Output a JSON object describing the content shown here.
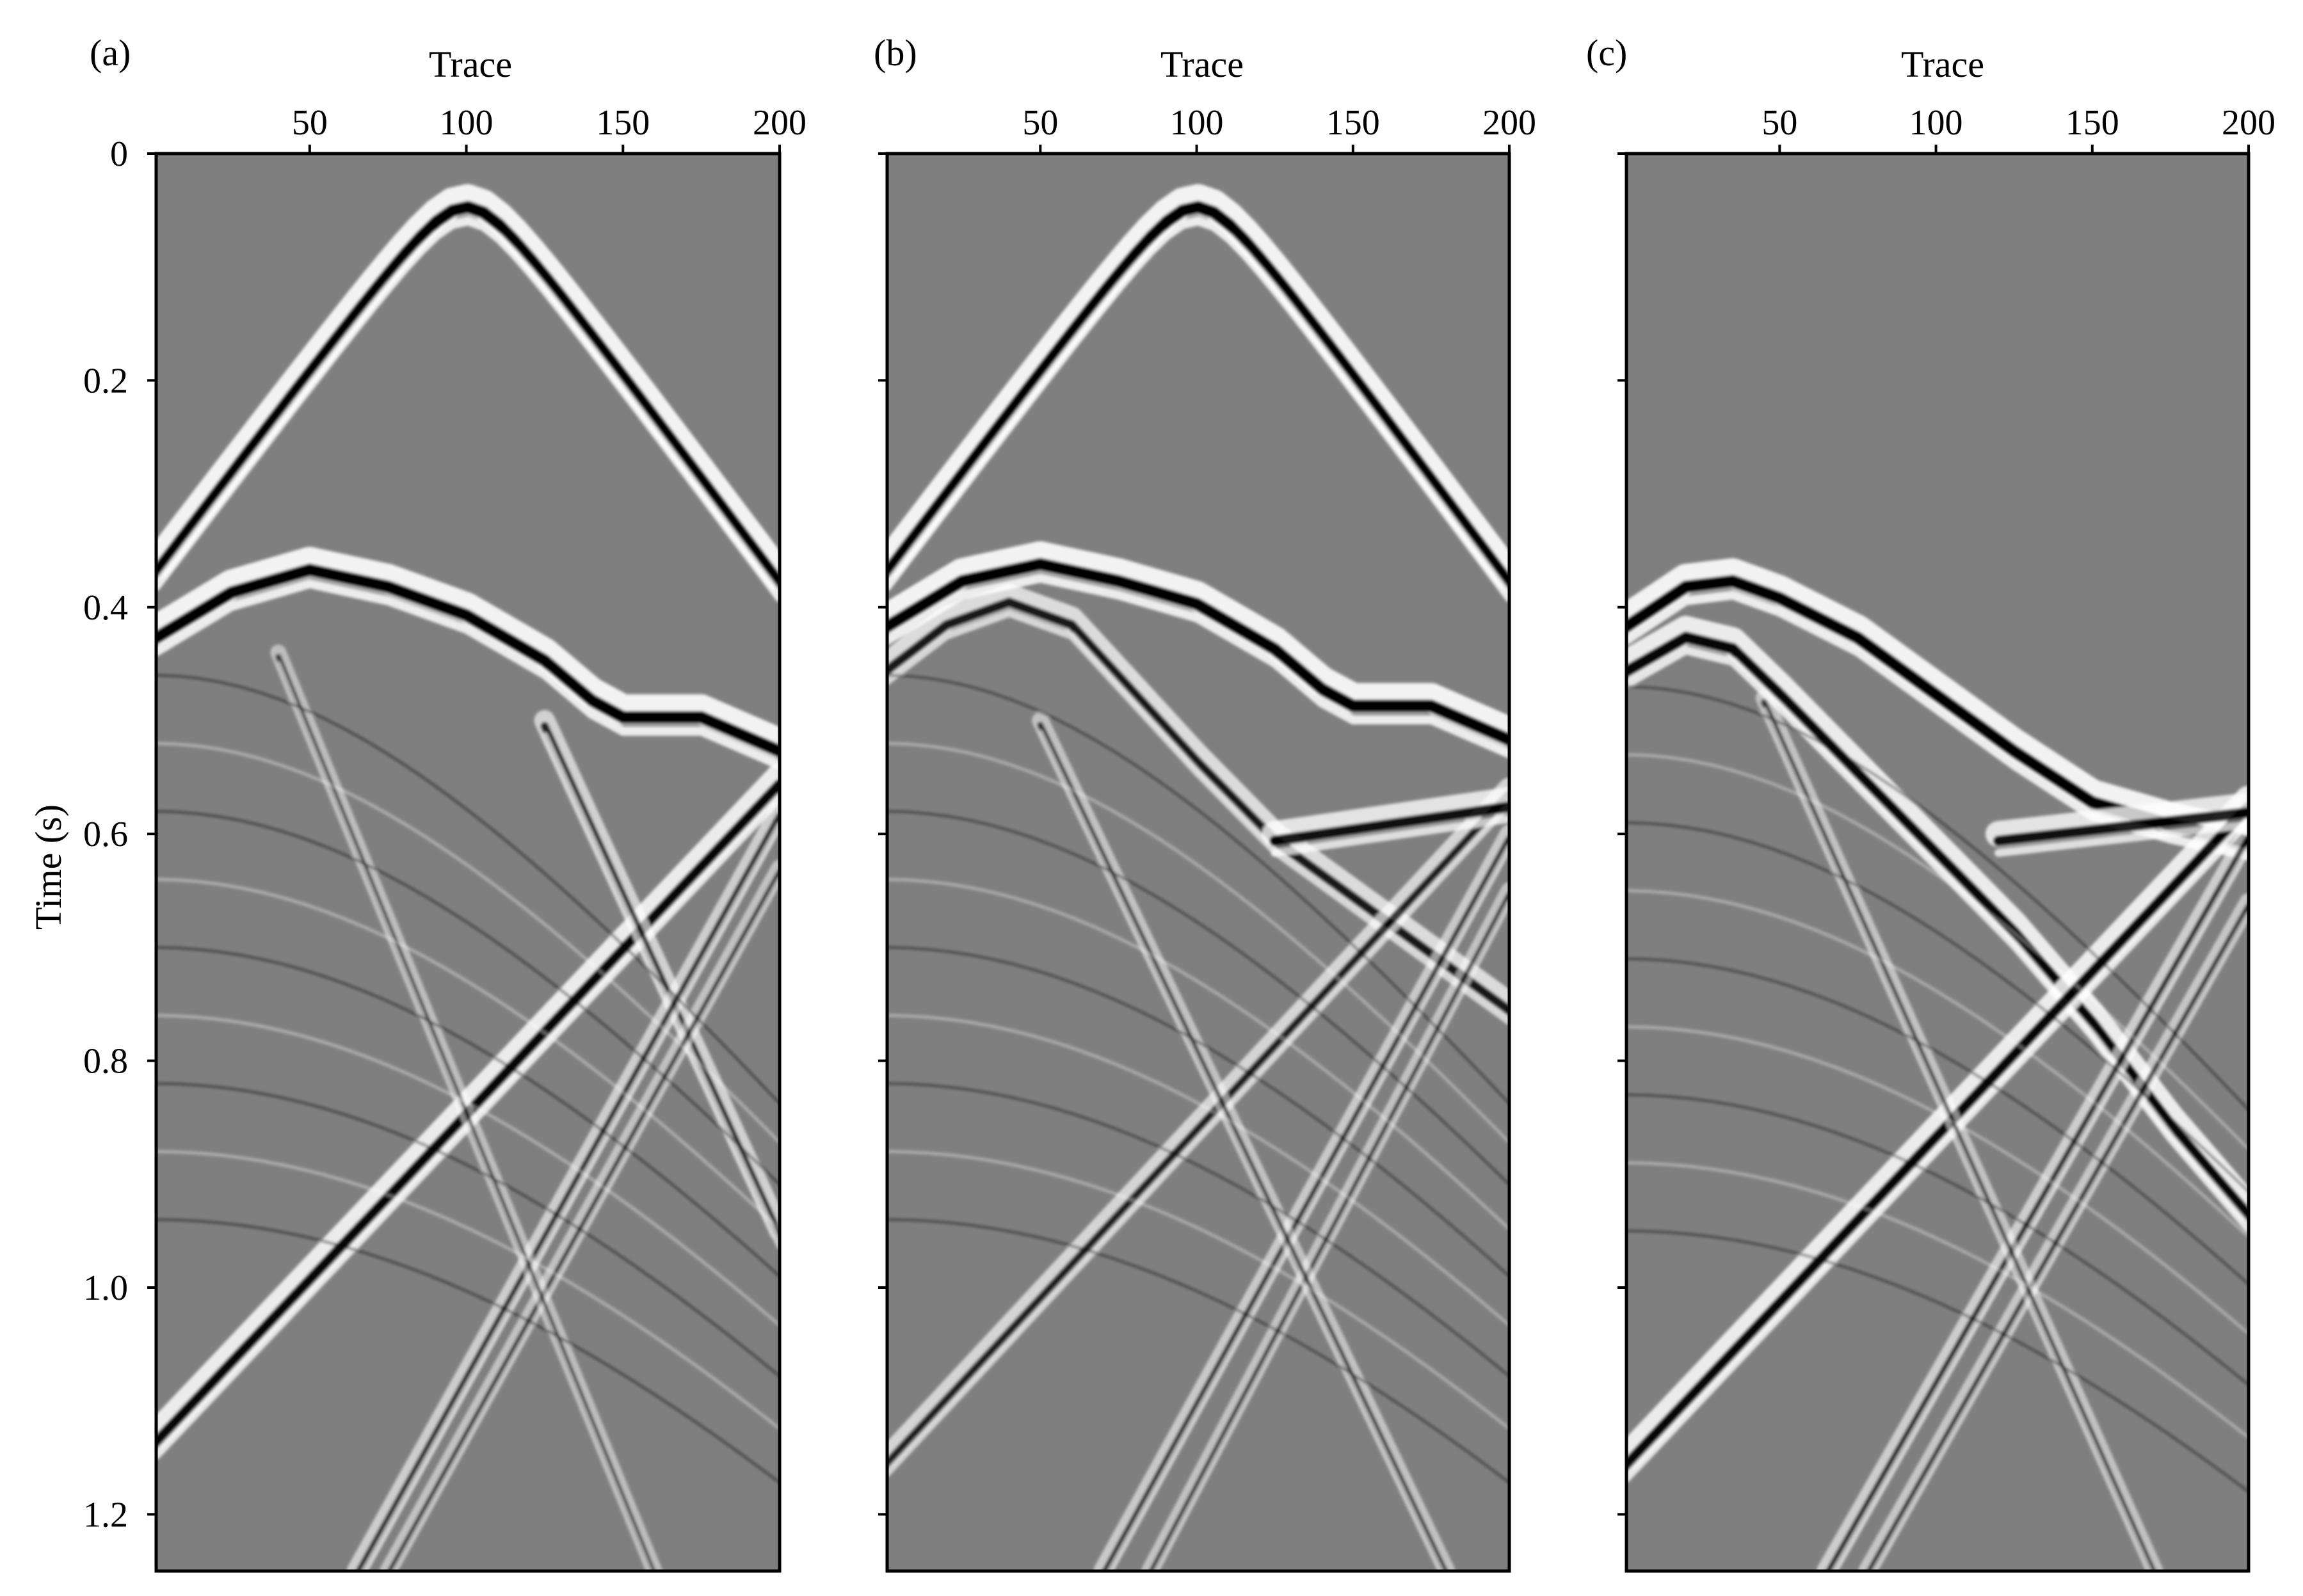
{
  "colors": {
    "background": "#7f7f7f",
    "positive": "#ffffff",
    "negative": "#000000",
    "frame": "#000000"
  },
  "chart_data": [
    {
      "type": "heatmap",
      "panel_label": "(a)",
      "title": "",
      "xlabel": "Trace",
      "ylabel": "Time (s)",
      "xlim": [
        1,
        200
      ],
      "ylim": [
        0,
        1.25
      ],
      "y_reversed": true,
      "x_axis_position": "top",
      "xticks": [
        50,
        100,
        150,
        200
      ],
      "yticks": [
        0,
        0.2,
        0.4,
        0.6,
        0.8,
        1.0,
        1.2
      ],
      "ytick_labels": [
        "0",
        "0.2",
        "0.4",
        "0.6",
        "0.8",
        "1.0",
        "1.2"
      ],
      "colormap": "gray (black = negative, white = positive)",
      "events": [
        {
          "kind": "direct-wave-hyperbola",
          "apex_trace": 100,
          "apex_time": 0.04,
          "left_end": [
            1,
            0.4
          ],
          "right_end": [
            200,
            0.41
          ],
          "amplitude": 1.0
        },
        {
          "kind": "first-arrival",
          "points": [
            [
              1,
              0.42
            ],
            [
              25,
              0.38
            ],
            [
              50,
              0.36
            ],
            [
              75,
              0.375
            ],
            [
              100,
              0.4
            ],
            [
              125,
              0.44
            ],
            [
              140,
              0.475
            ],
            [
              150,
              0.49
            ],
            [
              175,
              0.49
            ],
            [
              200,
              0.52
            ]
          ],
          "amplitude": 1.0
        },
        {
          "kind": "linear",
          "start": [
            1,
            1.13
          ],
          "end": [
            200,
            0.55
          ],
          "amplitude": 0.9
        },
        {
          "kind": "linear",
          "start": [
            125,
            0.5
          ],
          "end": [
            200,
            0.95
          ],
          "amplitude": 0.55
        },
        {
          "kind": "linear",
          "start": [
            65,
            1.25
          ],
          "end": [
            200,
            0.58
          ],
          "amplitude": 0.5
        },
        {
          "kind": "linear",
          "start": [
            75,
            1.25
          ],
          "end": [
            200,
            0.63
          ],
          "amplitude": 0.35
        },
        {
          "kind": "linear",
          "start": [
            40,
            0.44
          ],
          "end": [
            160,
            1.25
          ],
          "amplitude": 0.3
        },
        {
          "kind": "curve-family",
          "description": "concentric reflections",
          "center_trace": 0,
          "base_time": 0.46,
          "count": 9,
          "amplitude": 0.25
        }
      ]
    },
    {
      "type": "heatmap",
      "panel_label": "(b)",
      "title": "",
      "xlabel": "Trace",
      "ylabel": "",
      "xlim": [
        1,
        200
      ],
      "ylim": [
        0,
        1.25
      ],
      "y_reversed": true,
      "x_axis_position": "top",
      "xticks": [
        50,
        100,
        150,
        200
      ],
      "yticks": [
        0,
        0.2,
        0.4,
        0.6,
        0.8,
        1.0,
        1.2
      ],
      "ytick_labels": [],
      "colormap": "gray (black = negative, white = positive)",
      "events": [
        {
          "kind": "direct-wave-hyperbola",
          "apex_trace": 100,
          "apex_time": 0.04,
          "left_end": [
            1,
            0.4
          ],
          "right_end": [
            200,
            0.41
          ],
          "amplitude": 1.0
        },
        {
          "kind": "first-arrival",
          "points": [
            [
              1,
              0.41
            ],
            [
              25,
              0.37
            ],
            [
              50,
              0.355
            ],
            [
              75,
              0.37
            ],
            [
              100,
              0.39
            ],
            [
              125,
              0.43
            ],
            [
              140,
              0.465
            ],
            [
              150,
              0.48
            ],
            [
              175,
              0.48
            ],
            [
              200,
              0.51
            ]
          ],
          "amplitude": 1.0
        },
        {
          "kind": "first-arrival",
          "points": [
            [
              1,
              0.45
            ],
            [
              20,
              0.41
            ],
            [
              40,
              0.39
            ],
            [
              60,
              0.41
            ],
            [
              80,
              0.47
            ],
            [
              100,
              0.53
            ],
            [
              125,
              0.6
            ],
            [
              150,
              0.65
            ],
            [
              175,
              0.7
            ],
            [
              200,
              0.75
            ]
          ],
          "amplitude": 0.7
        },
        {
          "kind": "linear",
          "start": [
            1,
            1.15
          ],
          "end": [
            200,
            0.56
          ],
          "amplitude": 0.6
        },
        {
          "kind": "linear",
          "start": [
            125,
            0.6
          ],
          "end": [
            200,
            0.57
          ],
          "amplitude": 0.8
        },
        {
          "kind": "linear",
          "start": [
            70,
            1.25
          ],
          "end": [
            200,
            0.6
          ],
          "amplitude": 0.45
        },
        {
          "kind": "linear",
          "start": [
            85,
            1.25
          ],
          "end": [
            200,
            0.65
          ],
          "amplitude": 0.35
        },
        {
          "kind": "linear",
          "start": [
            50,
            0.5
          ],
          "end": [
            180,
            1.25
          ],
          "amplitude": 0.35
        },
        {
          "kind": "curve-family",
          "description": "concentric reflections",
          "center_trace": 0,
          "base_time": 0.46,
          "count": 9,
          "amplitude": 0.22
        }
      ]
    },
    {
      "type": "heatmap",
      "panel_label": "(c)",
      "title": "",
      "xlabel": "Trace",
      "ylabel": "",
      "xlim": [
        1,
        200
      ],
      "ylim": [
        0,
        1.25
      ],
      "y_reversed": true,
      "x_axis_position": "top",
      "xticks": [
        50,
        100,
        150,
        200
      ],
      "yticks": [
        0,
        0.2,
        0.4,
        0.6,
        0.8,
        1.0,
        1.2
      ],
      "ytick_labels": [],
      "colormap": "gray (black = negative, white = positive)",
      "events": [
        {
          "kind": "first-arrival",
          "points": [
            [
              1,
              0.41
            ],
            [
              20,
              0.375
            ],
            [
              35,
              0.37
            ],
            [
              50,
              0.385
            ],
            [
              75,
              0.42
            ],
            [
              100,
              0.47
            ],
            [
              125,
              0.52
            ],
            [
              150,
              0.565
            ],
            [
              175,
              0.585
            ],
            [
              200,
              0.6
            ]
          ],
          "amplitude": 1.0
        },
        {
          "kind": "first-arrival",
          "points": [
            [
              1,
              0.45
            ],
            [
              20,
              0.42
            ],
            [
              35,
              0.43
            ],
            [
              50,
              0.47
            ],
            [
              75,
              0.54
            ],
            [
              100,
              0.61
            ],
            [
              125,
              0.68
            ],
            [
              150,
              0.76
            ],
            [
              175,
              0.85
            ],
            [
              200,
              0.93
            ]
          ],
          "amplitude": 0.9
        },
        {
          "kind": "linear",
          "start": [
            1,
            1.15
          ],
          "end": [
            200,
            0.57
          ],
          "amplitude": 0.9
        },
        {
          "kind": "linear",
          "start": [
            120,
            0.6
          ],
          "end": [
            200,
            0.575
          ],
          "amplitude": 0.8
        },
        {
          "kind": "linear",
          "start": [
            65,
            1.25
          ],
          "end": [
            200,
            0.6
          ],
          "amplitude": 0.5
        },
        {
          "kind": "linear",
          "start": [
            78,
            1.25
          ],
          "end": [
            200,
            0.66
          ],
          "amplitude": 0.4
        },
        {
          "kind": "linear",
          "start": [
            45,
            0.48
          ],
          "end": [
            170,
            1.25
          ],
          "amplitude": 0.35
        },
        {
          "kind": "curve-family",
          "description": "concentric reflections",
          "center_trace": 0,
          "base_time": 0.47,
          "count": 9,
          "amplitude": 0.22
        }
      ]
    }
  ]
}
